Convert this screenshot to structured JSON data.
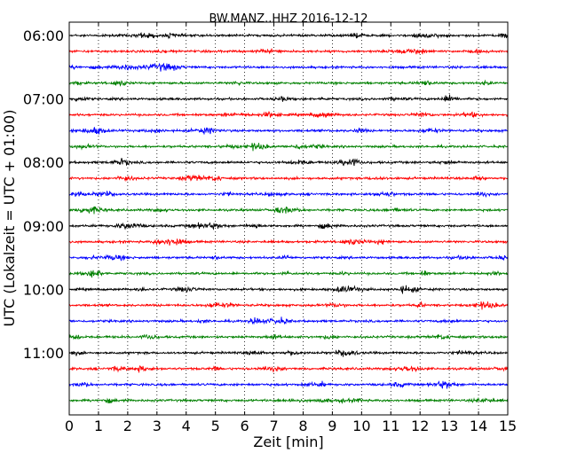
{
  "chart_data": {
    "type": "line",
    "title": "BW.MANZ..HHZ 2016-12-12",
    "xlabel": "Zeit  [min]",
    "ylabel": "UTC (Lokalzeit = UTC + 01:00)",
    "xlim": [
      0,
      15
    ],
    "x_ticks": [
      "0",
      "1",
      "2",
      "3",
      "4",
      "5",
      "6",
      "7",
      "8",
      "9",
      "10",
      "11",
      "12",
      "13",
      "14",
      "15"
    ],
    "y_ticks": [
      {
        "label": "06:00",
        "trace": 0
      },
      {
        "label": "07:00",
        "trace": 4
      },
      {
        "label": "08:00",
        "trace": 8
      },
      {
        "label": "09:00",
        "trace": 12
      },
      {
        "label": "10:00",
        "trace": 16
      },
      {
        "label": "11:00",
        "trace": 20
      }
    ],
    "grid": "vertical dotted at every minute",
    "trace_colors": [
      "#000000",
      "#ff0000",
      "#0000ff",
      "#008000"
    ],
    "traces": [
      {
        "start": "06:00",
        "color": "#000000"
      },
      {
        "start": "06:15",
        "color": "#ff0000"
      },
      {
        "start": "06:30",
        "color": "#0000ff"
      },
      {
        "start": "06:45",
        "color": "#008000"
      },
      {
        "start": "07:00",
        "color": "#000000"
      },
      {
        "start": "07:15",
        "color": "#ff0000"
      },
      {
        "start": "07:30",
        "color": "#0000ff"
      },
      {
        "start": "07:45",
        "color": "#008000"
      },
      {
        "start": "08:00",
        "color": "#000000"
      },
      {
        "start": "08:15",
        "color": "#ff0000"
      },
      {
        "start": "08:30",
        "color": "#0000ff"
      },
      {
        "start": "08:45",
        "color": "#008000"
      },
      {
        "start": "09:00",
        "color": "#000000"
      },
      {
        "start": "09:15",
        "color": "#ff0000"
      },
      {
        "start": "09:30",
        "color": "#0000ff"
      },
      {
        "start": "09:45",
        "color": "#008000"
      },
      {
        "start": "10:00",
        "color": "#000000"
      },
      {
        "start": "10:15",
        "color": "#ff0000"
      },
      {
        "start": "10:30",
        "color": "#0000ff"
      },
      {
        "start": "10:45",
        "color": "#008000"
      },
      {
        "start": "11:00",
        "color": "#000000"
      },
      {
        "start": "11:15",
        "color": "#ff0000"
      },
      {
        "start": "11:30",
        "color": "#0000ff"
      },
      {
        "start": "11:45",
        "color": "#008000"
      }
    ]
  }
}
